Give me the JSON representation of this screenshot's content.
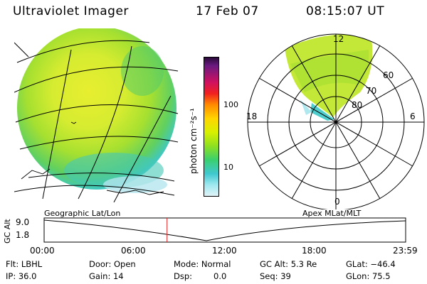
{
  "header": {
    "instrument": "Ultraviolet Imager",
    "date": "17 Feb 07",
    "time": "08:15:07 UT"
  },
  "colorbar": {
    "unit_label": "photon cm⁻²s⁻¹",
    "ticks": [
      "100",
      "10"
    ],
    "colors": [
      "#2a0a3a",
      "#6a1a80",
      "#d01060",
      "#f02020",
      "#ff8a00",
      "#ffd400",
      "#d8f000",
      "#8ee020",
      "#3ad070",
      "#40c8d0",
      "#a0e8f0",
      "#e0f4f8"
    ]
  },
  "geo_map": {
    "label": "Geographic Lat/Lon"
  },
  "polar_plot": {
    "label": "Apex MLat/MLT",
    "mlt_labels": {
      "top": "12",
      "left": "18",
      "right": "6",
      "bottom": "0"
    },
    "lat_labels": [
      "60",
      "70",
      "80"
    ]
  },
  "alt_plot": {
    "ylabel": "GC Alt",
    "yticks": [
      "9.0",
      "1.8"
    ],
    "xticks": [
      "00:00",
      "06:00",
      "12:00",
      "18:00",
      "23:59"
    ],
    "current_time_fraction": 0.34
  },
  "info": {
    "filter": "Flt: LBHL",
    "ip": "IP: 36.0",
    "door": "Door: Open",
    "gain": "Gain: 14",
    "mode": "Mode: Normal",
    "dsp_label": "Dsp:",
    "dsp_value": "0.0",
    "gcalt": "GC Alt: 5.3 Re",
    "seq": "Seq: 39",
    "glat": "GLat: −46.4",
    "glon": "GLon: 75.5"
  }
}
